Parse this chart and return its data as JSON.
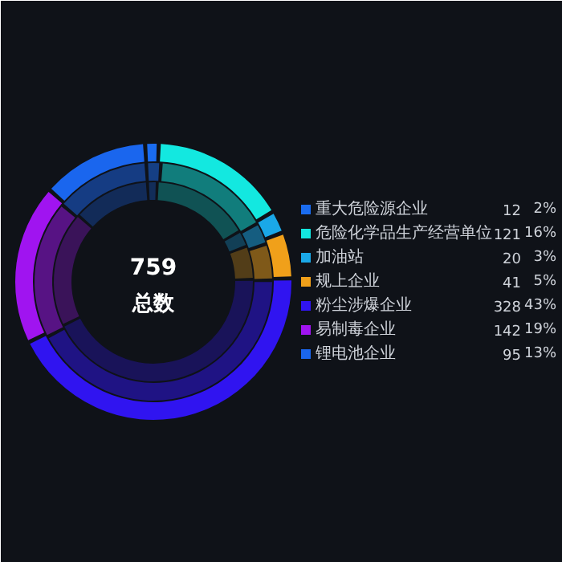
{
  "chart_data": {
    "type": "donut",
    "annotations": [
      "759",
      "总数"
    ],
    "categories": [
      "重大危险源企业",
      "危险化学品生产经营单位",
      "加油站",
      "规上企业",
      "粉尘涉爆企业",
      "易制毒企业",
      "锂电池企业"
    ],
    "series": [
      {
        "values": [
          12,
          121,
          20,
          41,
          328,
          142,
          95
        ],
        "value_labels": [
          "12",
          "121",
          "20",
          "41",
          "328",
          "142",
          "95"
        ],
        "colors": [
          "#1a6cf0",
          "#13e8e0",
          "#1aa8e8",
          "#f0a01a",
          "#3014f0",
          "#a014f0",
          "#1a66ee"
        ]
      },
      {
        "values": [
          2,
          16,
          3,
          5,
          43,
          19,
          13
        ],
        "value_labels": [
          "2%",
          "16%",
          "3%",
          "5%",
          "43%",
          "19%",
          "13%"
        ],
        "colors": [
          "#153f84",
          "#117d7c",
          "#155d80",
          "#7f5919",
          "#1f1384",
          "#571384",
          "#153c83"
        ]
      },
      {
        "values": [
          1.58,
          15.94,
          2.64,
          5.4,
          43.21,
          18.71,
          12.52
        ],
        "colors": [
          "#122d59",
          "#105254",
          "#123f56",
          "#523d18",
          "#191359",
          "#3a1359",
          "#122b58"
        ]
      }
    ],
    "legend": "right"
  }
}
